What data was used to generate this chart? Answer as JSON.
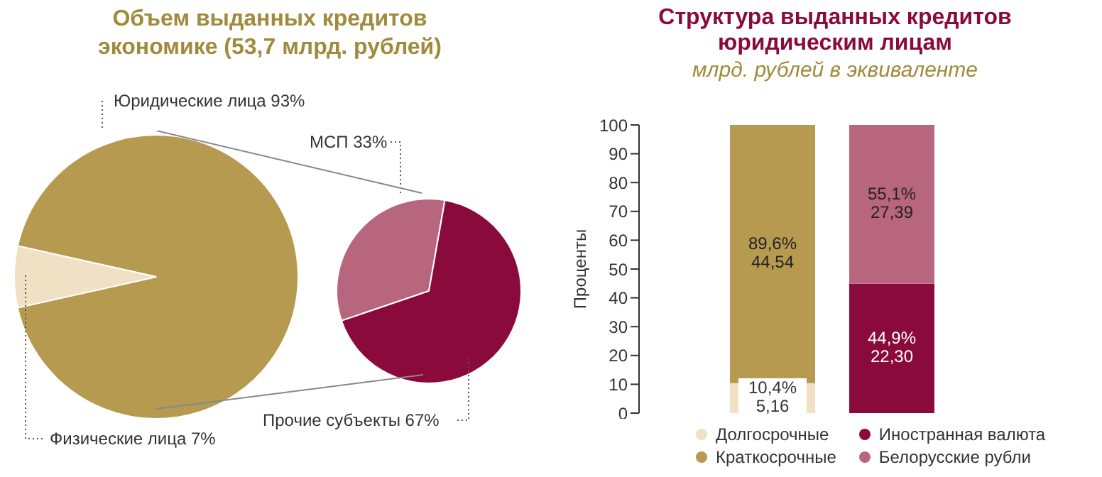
{
  "chart_data": [
    {
      "type": "pie",
      "title": "Объем выданных кредитов экономике (53,7 млрд. рублей)",
      "categories": [
        "Юридические лица",
        "Физические лица"
      ],
      "values": [
        93,
        7
      ],
      "colors": [
        "#b59a4f",
        "#f0e0c4"
      ],
      "value_labels": [
        "93%",
        "7%"
      ]
    },
    {
      "type": "pie",
      "categories": [
        "МСП",
        "Прочие субъекты"
      ],
      "values": [
        33,
        67
      ],
      "colors": [
        "#b8667e",
        "#8b0a3c"
      ],
      "value_labels": [
        "33%",
        "67%"
      ]
    },
    {
      "type": "bar",
      "title": "Структура выданных кредитов юридическим лицам",
      "subtitle": "млрд. рублей в эквиваленте",
      "ylabel": "Проценты",
      "categories": [
        null,
        null
      ],
      "stacked": true,
      "ylim": [
        0,
        100
      ],
      "yticks": [
        0,
        10,
        20,
        30,
        40,
        50,
        60,
        70,
        80,
        90,
        100
      ],
      "legend": "bottom",
      "series": [
        {
          "name": "Долгосрочные",
          "color": "#f0e0c4",
          "values": [
            10.4,
            null
          ],
          "value_labels": [
            "10,4%\n5,16",
            null
          ]
        },
        {
          "name": "Краткосрочные",
          "color": "#b59a4f",
          "values": [
            89.6,
            null
          ],
          "value_labels": [
            "89,6%\n44,54",
            null
          ]
        },
        {
          "name": "Иностранная валюта",
          "color": "#8b0a3c",
          "values": [
            null,
            44.9
          ],
          "value_labels": [
            null,
            "44,9%\n22,30"
          ]
        },
        {
          "name": "Белорусские рубли",
          "color": "#b8667e",
          "values": [
            null,
            55.1
          ],
          "value_labels": [
            null,
            "55,1%\n27,39"
          ]
        }
      ]
    }
  ]
}
